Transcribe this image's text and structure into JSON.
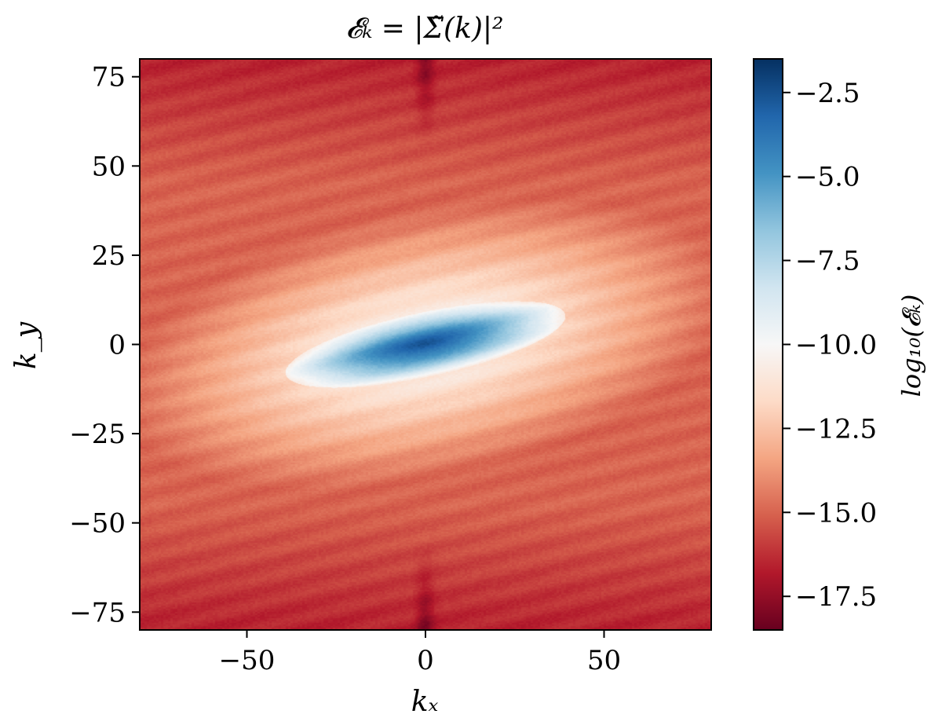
{
  "chart_data": {
    "type": "heatmap",
    "title": "𝓔ₖ = |Σ̃(k)|²",
    "xlabel": "kₓ",
    "ylabel": "k_y",
    "xlim": [
      -80,
      80
    ],
    "ylim": [
      -80,
      80
    ],
    "x_ticks": [
      -50,
      0,
      50
    ],
    "x_tick_labels": [
      "−50",
      "0",
      "50"
    ],
    "y_ticks": [
      75,
      50,
      25,
      0,
      -25,
      -50,
      -75
    ],
    "y_tick_labels": [
      "75",
      "50",
      "25",
      "0",
      "−25",
      "−50",
      "−75"
    ],
    "grid": false,
    "colorbar": {
      "label": "log₁₀(𝓔ₖ)",
      "range": [
        -18.5,
        -1.5
      ],
      "ticks": [
        -2.5,
        -5.0,
        -7.5,
        -10.0,
        -12.5,
        -15.0,
        -17.5
      ],
      "tick_labels": [
        "−2.5",
        "−5.0",
        "−7.5",
        "−10.0",
        "−12.5",
        "−15.0",
        "−17.5"
      ],
      "colormap": "RdBu",
      "colors": [
        "#67001f",
        "#b2182b",
        "#d6604d",
        "#f4a582",
        "#fddbc7",
        "#f7f7f7",
        "#d1e5f0",
        "#92c5de",
        "#4393c3",
        "#2166ac",
        "#053061"
      ]
    },
    "field": {
      "description_values": "peak log10 value at origin ≈ -2.5, background ≈ -15.5",
      "peak_value": -2.5,
      "background_value": -15.5,
      "ellipse_tilt_deg": 12,
      "ellipse_semi_major": 40,
      "ellipse_semi_minor": 9
    }
  }
}
